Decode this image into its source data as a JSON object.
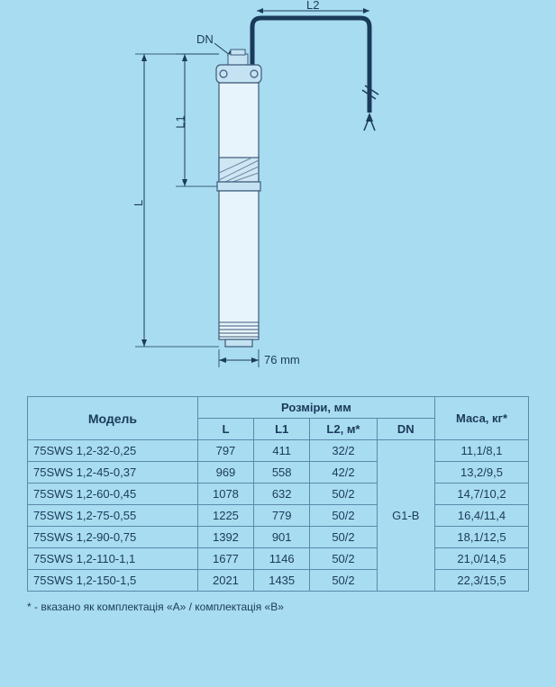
{
  "diagram": {
    "labels": {
      "DN": "DN",
      "L2": "L2",
      "L1": "L1",
      "L": "L",
      "width": "76 mm"
    },
    "colors": {
      "background": "#a8dcf0",
      "line": "#1a3a5a",
      "pump_body": "#cfe8f5",
      "pump_outline": "#3a5a7a",
      "hatch": "#6a8aa8"
    }
  },
  "table": {
    "headers": {
      "model": "Модель",
      "dimensions": "Розміри, мм",
      "L": "L",
      "L1": "L1",
      "L2": "L2, м*",
      "DN": "DN",
      "mass": "Маса, кг*"
    },
    "dn_value": "G1-B",
    "rows": [
      {
        "model": "75SWS 1,2-32-0,25",
        "L": "797",
        "L1": "411",
        "L2": "32/2",
        "mass": "11,1/8,1"
      },
      {
        "model": "75SWS 1,2-45-0,37",
        "L": "969",
        "L1": "558",
        "L2": "42/2",
        "mass": "13,2/9,5"
      },
      {
        "model": "75SWS 1,2-60-0,45",
        "L": "1078",
        "L1": "632",
        "L2": "50/2",
        "mass": "14,7/10,2"
      },
      {
        "model": "75SWS 1,2-75-0,55",
        "L": "1225",
        "L1": "779",
        "L2": "50/2",
        "mass": "16,4/11,4"
      },
      {
        "model": "75SWS 1,2-90-0,75",
        "L": "1392",
        "L1": "901",
        "L2": "50/2",
        "mass": "18,1/12,5"
      },
      {
        "model": "75SWS 1,2-110-1,1",
        "L": "1677",
        "L1": "1146",
        "L2": "50/2",
        "mass": "21,0/14,5"
      },
      {
        "model": "75SWS 1,2-150-1,5",
        "L": "2021",
        "L1": "1435",
        "L2": "50/2",
        "mass": "22,3/15,5"
      }
    ]
  },
  "footnote": "* -  вказано як комплектація «А» / комплектація «В»"
}
